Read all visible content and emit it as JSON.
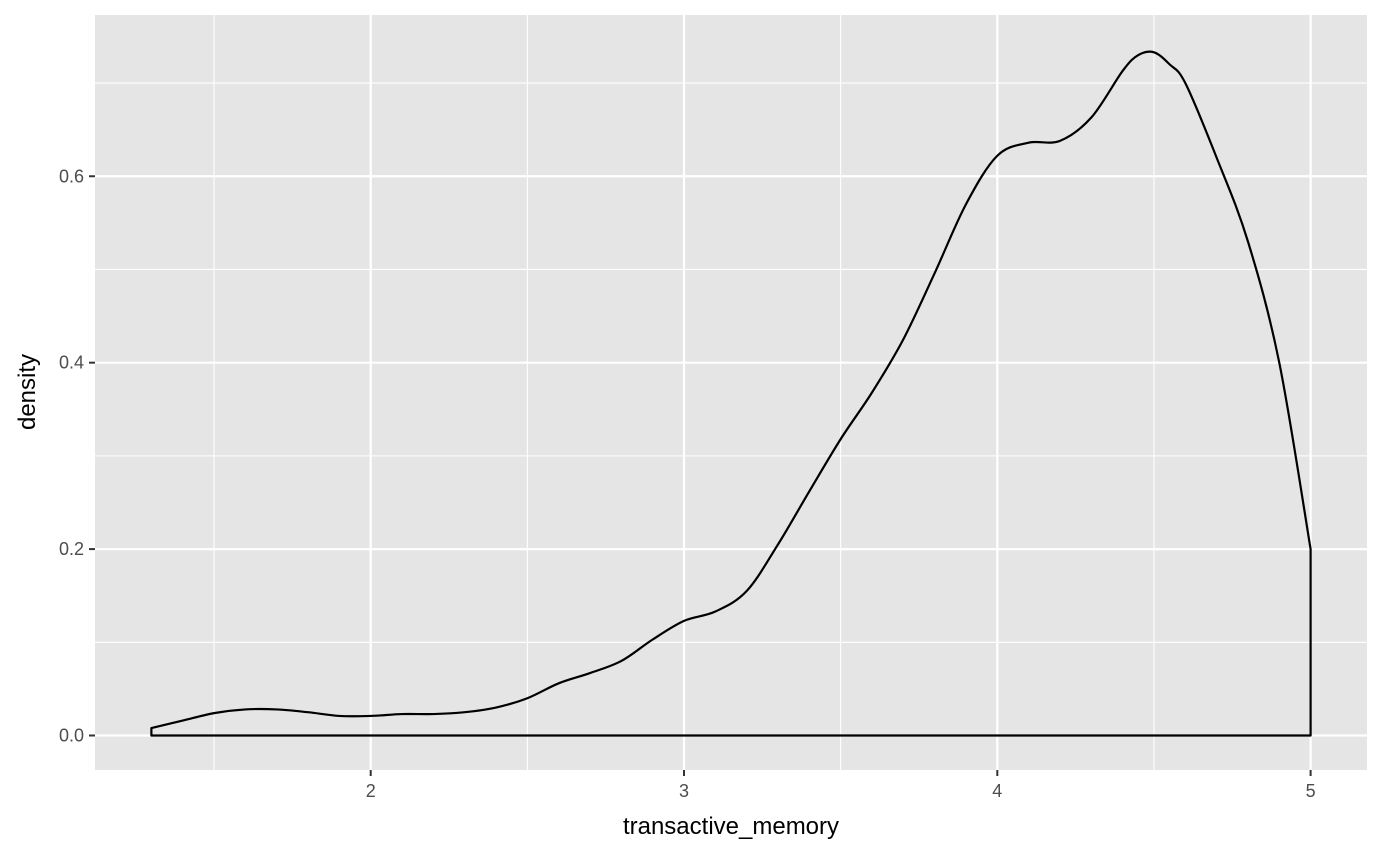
{
  "chart_data": {
    "type": "area",
    "title": "",
    "xlabel": "transactive_memory",
    "ylabel": "density",
    "xlim": [
      1.12,
      5.18
    ],
    "ylim": [
      -0.037,
      0.773
    ],
    "x_ticks": [
      2,
      3,
      4,
      5
    ],
    "x_tick_labels": [
      "2",
      "3",
      "4",
      "5"
    ],
    "x_minor_ticks": [
      1.5,
      2.5,
      3.5,
      4.5
    ],
    "y_ticks": [
      0.0,
      0.2,
      0.4,
      0.6
    ],
    "y_tick_labels": [
      "0.0",
      "0.2",
      "0.4",
      "0.6"
    ],
    "y_minor_ticks": [
      0.1,
      0.3,
      0.5,
      0.7
    ],
    "grid": true,
    "legend": "none",
    "colors": {
      "panel": "#e5e5e5",
      "grid": "#ffffff",
      "line": "#000000",
      "fill": "none"
    },
    "series": [
      {
        "x": [
          1.3,
          1.4,
          1.5,
          1.6,
          1.7,
          1.8,
          1.9,
          2.0,
          2.1,
          2.2,
          2.3,
          2.4,
          2.5,
          2.6,
          2.7,
          2.8,
          2.9,
          3.0,
          3.1,
          3.2,
          3.3,
          3.4,
          3.5,
          3.6,
          3.7,
          3.8,
          3.9,
          4.0,
          4.1,
          4.2,
          4.3,
          4.4,
          4.45,
          4.5,
          4.55,
          4.6,
          4.7,
          4.8,
          4.9,
          5.0
        ],
        "y": [
          0.008,
          0.016,
          0.024,
          0.028,
          0.028,
          0.025,
          0.021,
          0.021,
          0.023,
          0.023,
          0.025,
          0.03,
          0.04,
          0.056,
          0.067,
          0.08,
          0.103,
          0.123,
          0.133,
          0.155,
          0.205,
          0.262,
          0.318,
          0.368,
          0.425,
          0.496,
          0.57,
          0.622,
          0.636,
          0.638,
          0.663,
          0.713,
          0.73,
          0.733,
          0.72,
          0.7,
          0.62,
          0.53,
          0.4,
          0.2
        ]
      }
    ]
  }
}
